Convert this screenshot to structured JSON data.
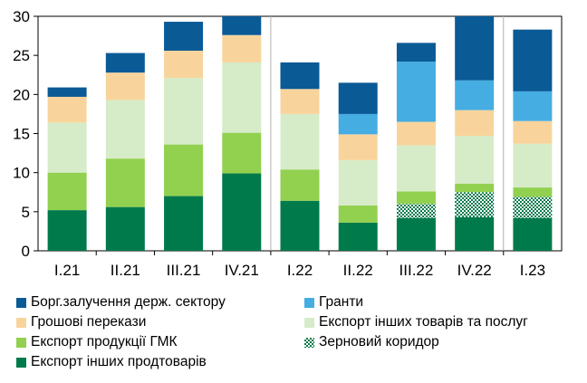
{
  "chart_data": {
    "type": "bar",
    "stacked": true,
    "categories": [
      "I.21",
      "II.21",
      "III.21",
      "IV.21",
      "I.22",
      "II.22",
      "III.22",
      "IV.22",
      "I.23"
    ],
    "ylim": [
      0,
      30
    ],
    "yticks": [
      0,
      5,
      10,
      15,
      20,
      25,
      30
    ],
    "legend_position": "bottom",
    "series": [
      {
        "name": "Експорт інших продтоварів",
        "color": "#007a4b",
        "values": [
          5.2,
          5.6,
          7.0,
          9.9,
          6.4,
          3.6,
          4.2,
          4.3,
          4.2
        ]
      },
      {
        "name": "Зерновий коридор",
        "color": "#007a4b",
        "pattern": "grid",
        "values": [
          0,
          0,
          0,
          0,
          0,
          0,
          1.8,
          3.2,
          2.7
        ]
      },
      {
        "name": "Експорт продукції ГМК",
        "color": "#92d050",
        "values": [
          4.8,
          6.2,
          6.6,
          5.2,
          4.0,
          2.2,
          1.6,
          1.1,
          1.2
        ]
      },
      {
        "name": "Експорт інших товарів та послуг",
        "color": "#d6ecc8",
        "values": [
          6.4,
          7.5,
          8.5,
          9.0,
          7.1,
          5.8,
          5.9,
          6.1,
          5.6
        ]
      },
      {
        "name": "Грошові перекази",
        "color": "#f8d49c",
        "values": [
          3.3,
          3.5,
          3.5,
          3.5,
          3.2,
          3.3,
          3.0,
          3.3,
          2.9
        ]
      },
      {
        "name": "Гранти",
        "color": "#45ade2",
        "values": [
          0,
          0,
          0,
          0,
          0,
          2.6,
          7.7,
          3.8,
          3.8
        ]
      },
      {
        "name": "Борг.залучення держ. сектору",
        "color": "#0a5a96",
        "values": [
          1.2,
          2.5,
          3.7,
          2.5,
          3.4,
          4.0,
          2.4,
          8.3,
          7.9
        ]
      }
    ]
  },
  "legend_layout": [
    [
      "Борг.залучення держ. сектору",
      "Гранти"
    ],
    [
      "Грошові перекази",
      "Експорт інших товарів та послуг"
    ],
    [
      "Експорт продукції ГМК",
      "Зерновий коридор"
    ],
    [
      "Експорт інших продтоварів"
    ]
  ]
}
